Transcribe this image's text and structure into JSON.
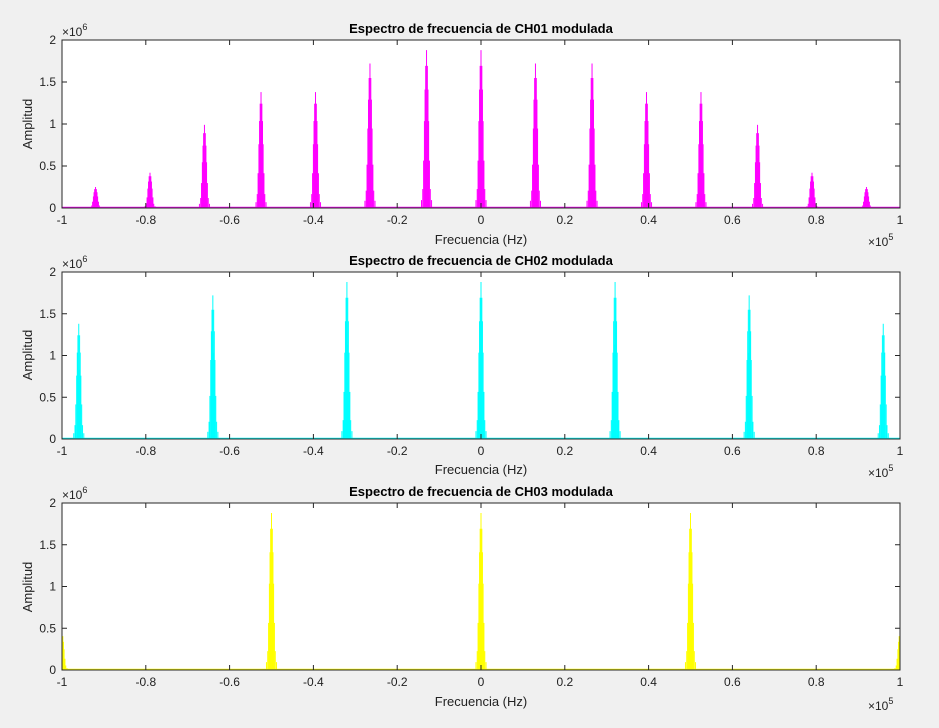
{
  "figure": {
    "background": "#f0f0f0",
    "axes_background": "#ffffff"
  },
  "chart_data": [
    {
      "type": "line",
      "title": "Espectro de frecuencia de CH01 modulada",
      "xlabel": "Frecuencia (Hz)",
      "ylabel": "Amplitud",
      "xlim": [
        -1,
        1
      ],
      "ylim": [
        0,
        2
      ],
      "x_multiplier": "×10",
      "x_exponent": "5",
      "y_multiplier": "×10",
      "y_exponent": "6",
      "xticks": [
        "-1",
        "-0.8",
        "-0.6",
        "-0.4",
        "-0.2",
        "0",
        "0.2",
        "0.4",
        "0.6",
        "0.8",
        "1"
      ],
      "yticks": [
        "0",
        "0.5",
        "1",
        "1.5",
        "2"
      ],
      "color": "#ff00ff",
      "peaks": [
        {
          "center": -0.92,
          "amplitude": 0.25
        },
        {
          "center": -0.79,
          "amplitude": 0.42
        },
        {
          "center": -0.66,
          "amplitude": 0.99
        },
        {
          "center": -0.525,
          "amplitude": 1.38
        },
        {
          "center": -0.395,
          "amplitude": 1.38
        },
        {
          "center": -0.265,
          "amplitude": 1.72
        },
        {
          "center": -0.13,
          "amplitude": 1.88
        },
        {
          "center": 0.0,
          "amplitude": 1.88
        },
        {
          "center": 0.13,
          "amplitude": 1.72
        },
        {
          "center": 0.265,
          "amplitude": 1.72
        },
        {
          "center": 0.395,
          "amplitude": 1.38
        },
        {
          "center": 0.525,
          "amplitude": 1.38
        },
        {
          "center": 0.66,
          "amplitude": 0.99
        },
        {
          "center": 0.79,
          "amplitude": 0.42
        },
        {
          "center": 0.92,
          "amplitude": 0.25
        }
      ]
    },
    {
      "type": "line",
      "title": "Espectro de frecuencia de CH02 modulada",
      "xlabel": "Frecuencia (Hz)",
      "ylabel": "Amplitud",
      "xlim": [
        -1,
        1
      ],
      "ylim": [
        0,
        2
      ],
      "x_multiplier": "×10",
      "x_exponent": "5",
      "y_multiplier": "×10",
      "y_exponent": "6",
      "xticks": [
        "-1",
        "-0.8",
        "-0.6",
        "-0.4",
        "-0.2",
        "0",
        "0.2",
        "0.4",
        "0.6",
        "0.8",
        "1"
      ],
      "yticks": [
        "0",
        "0.5",
        "1",
        "1.5",
        "2"
      ],
      "color": "#00ffff",
      "peaks": [
        {
          "center": -0.96,
          "amplitude": 1.38
        },
        {
          "center": -0.64,
          "amplitude": 1.72
        },
        {
          "center": -0.32,
          "amplitude": 1.88
        },
        {
          "center": 0.0,
          "amplitude": 1.88
        },
        {
          "center": 0.32,
          "amplitude": 1.88
        },
        {
          "center": 0.64,
          "amplitude": 1.72
        },
        {
          "center": 0.96,
          "amplitude": 1.38
        }
      ]
    },
    {
      "type": "line",
      "title": "Espectro de frecuencia de CH03 modulada",
      "xlabel": "Frecuencia (Hz)",
      "ylabel": "Amplitud",
      "xlim": [
        -1,
        1
      ],
      "ylim": [
        0,
        2
      ],
      "x_multiplier": "×10",
      "x_exponent": "5",
      "y_multiplier": "×10",
      "y_exponent": "6",
      "xticks": [
        "-1",
        "-0.8",
        "-0.6",
        "-0.4",
        "-0.2",
        "0",
        "0.2",
        "0.4",
        "0.6",
        "0.8",
        "1"
      ],
      "yticks": [
        "0",
        "0.5",
        "1",
        "1.5",
        "2"
      ],
      "color": "#ffff00",
      "peaks": [
        {
          "center": -1.0,
          "amplitude": 0.45
        },
        {
          "center": -0.5,
          "amplitude": 1.88
        },
        {
          "center": 0.0,
          "amplitude": 1.88
        },
        {
          "center": 0.5,
          "amplitude": 1.88
        },
        {
          "center": 1.0,
          "amplitude": 0.45
        }
      ]
    }
  ]
}
